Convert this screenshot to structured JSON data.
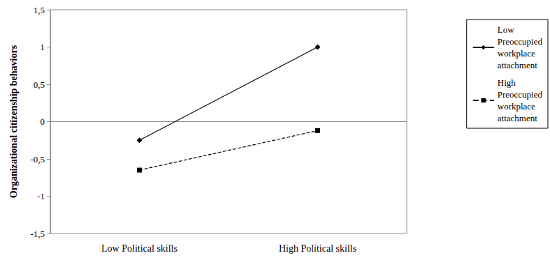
{
  "chart_data": {
    "type": "line",
    "y_label": "Organizational citizenship behaviors",
    "categories": [
      "Low Political skills",
      "High Political skills"
    ],
    "series": [
      {
        "name": "Low Preoccupied workplace attachment",
        "color": "#000000",
        "marker": "diamond",
        "line_style": "solid",
        "values": [
          -0.25,
          1.0
        ]
      },
      {
        "name": "High Preoccupied workplace attachment",
        "color": "#000000",
        "marker": "square",
        "line_style": "dashed",
        "values": [
          -0.65,
          -0.12
        ]
      }
    ],
    "ylim": [
      -1.5,
      1.5
    ],
    "yticks": [
      {
        "value": -1.5,
        "label": "-1,5"
      },
      -1,
      {
        "value": -0.5,
        "label": "-0,5"
      },
      0,
      {
        "value": 0.5,
        "label": "0,5"
      },
      1,
      {
        "value": 1.5,
        "label": "1,5"
      }
    ],
    "grid": false,
    "legend": "right"
  }
}
